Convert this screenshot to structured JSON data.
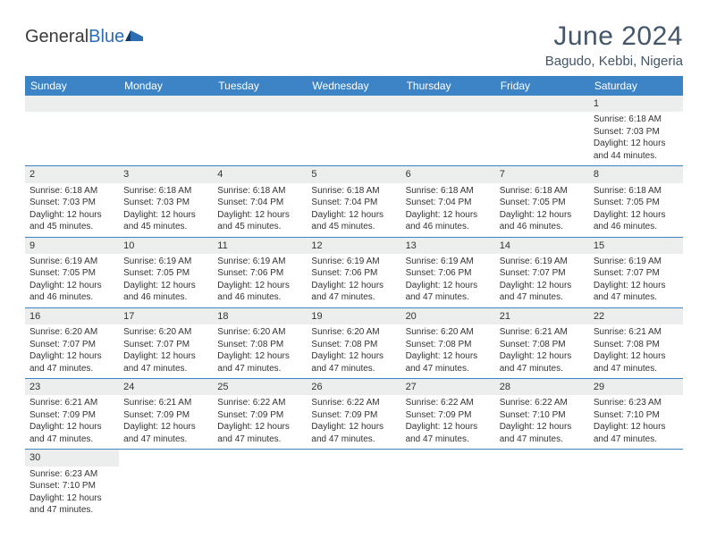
{
  "brand": {
    "part1": "General",
    "part2": "Blue"
  },
  "title": "June 2024",
  "location": "Bagudo, Kebbi, Nigeria",
  "colors": {
    "header_bg": "#3d84c6",
    "header_text": "#ffffff",
    "daynum_bg": "#eceded",
    "cell_border": "#3d84c6",
    "title_color": "#44566a",
    "brand_blue": "#2a6db5",
    "text": "#333333",
    "page_bg": "#ffffff"
  },
  "fonts": {
    "title_size_pt": 22,
    "location_size_pt": 11,
    "dayheader_size_pt": 9,
    "daynum_size_pt": 8,
    "body_size_pt": 7.5
  },
  "day_headers": [
    "Sunday",
    "Monday",
    "Tuesday",
    "Wednesday",
    "Thursday",
    "Friday",
    "Saturday"
  ],
  "weeks": [
    [
      null,
      null,
      null,
      null,
      null,
      null,
      {
        "n": "1",
        "sr": "Sunrise: 6:18 AM",
        "ss": "Sunset: 7:03 PM",
        "dl": "Daylight: 12 hours and 44 minutes."
      }
    ],
    [
      {
        "n": "2",
        "sr": "Sunrise: 6:18 AM",
        "ss": "Sunset: 7:03 PM",
        "dl": "Daylight: 12 hours and 45 minutes."
      },
      {
        "n": "3",
        "sr": "Sunrise: 6:18 AM",
        "ss": "Sunset: 7:03 PM",
        "dl": "Daylight: 12 hours and 45 minutes."
      },
      {
        "n": "4",
        "sr": "Sunrise: 6:18 AM",
        "ss": "Sunset: 7:04 PM",
        "dl": "Daylight: 12 hours and 45 minutes."
      },
      {
        "n": "5",
        "sr": "Sunrise: 6:18 AM",
        "ss": "Sunset: 7:04 PM",
        "dl": "Daylight: 12 hours and 45 minutes."
      },
      {
        "n": "6",
        "sr": "Sunrise: 6:18 AM",
        "ss": "Sunset: 7:04 PM",
        "dl": "Daylight: 12 hours and 46 minutes."
      },
      {
        "n": "7",
        "sr": "Sunrise: 6:18 AM",
        "ss": "Sunset: 7:05 PM",
        "dl": "Daylight: 12 hours and 46 minutes."
      },
      {
        "n": "8",
        "sr": "Sunrise: 6:18 AM",
        "ss": "Sunset: 7:05 PM",
        "dl": "Daylight: 12 hours and 46 minutes."
      }
    ],
    [
      {
        "n": "9",
        "sr": "Sunrise: 6:19 AM",
        "ss": "Sunset: 7:05 PM",
        "dl": "Daylight: 12 hours and 46 minutes."
      },
      {
        "n": "10",
        "sr": "Sunrise: 6:19 AM",
        "ss": "Sunset: 7:05 PM",
        "dl": "Daylight: 12 hours and 46 minutes."
      },
      {
        "n": "11",
        "sr": "Sunrise: 6:19 AM",
        "ss": "Sunset: 7:06 PM",
        "dl": "Daylight: 12 hours and 46 minutes."
      },
      {
        "n": "12",
        "sr": "Sunrise: 6:19 AM",
        "ss": "Sunset: 7:06 PM",
        "dl": "Daylight: 12 hours and 47 minutes."
      },
      {
        "n": "13",
        "sr": "Sunrise: 6:19 AM",
        "ss": "Sunset: 7:06 PM",
        "dl": "Daylight: 12 hours and 47 minutes."
      },
      {
        "n": "14",
        "sr": "Sunrise: 6:19 AM",
        "ss": "Sunset: 7:07 PM",
        "dl": "Daylight: 12 hours and 47 minutes."
      },
      {
        "n": "15",
        "sr": "Sunrise: 6:19 AM",
        "ss": "Sunset: 7:07 PM",
        "dl": "Daylight: 12 hours and 47 minutes."
      }
    ],
    [
      {
        "n": "16",
        "sr": "Sunrise: 6:20 AM",
        "ss": "Sunset: 7:07 PM",
        "dl": "Daylight: 12 hours and 47 minutes."
      },
      {
        "n": "17",
        "sr": "Sunrise: 6:20 AM",
        "ss": "Sunset: 7:07 PM",
        "dl": "Daylight: 12 hours and 47 minutes."
      },
      {
        "n": "18",
        "sr": "Sunrise: 6:20 AM",
        "ss": "Sunset: 7:08 PM",
        "dl": "Daylight: 12 hours and 47 minutes."
      },
      {
        "n": "19",
        "sr": "Sunrise: 6:20 AM",
        "ss": "Sunset: 7:08 PM",
        "dl": "Daylight: 12 hours and 47 minutes."
      },
      {
        "n": "20",
        "sr": "Sunrise: 6:20 AM",
        "ss": "Sunset: 7:08 PM",
        "dl": "Daylight: 12 hours and 47 minutes."
      },
      {
        "n": "21",
        "sr": "Sunrise: 6:21 AM",
        "ss": "Sunset: 7:08 PM",
        "dl": "Daylight: 12 hours and 47 minutes."
      },
      {
        "n": "22",
        "sr": "Sunrise: 6:21 AM",
        "ss": "Sunset: 7:08 PM",
        "dl": "Daylight: 12 hours and 47 minutes."
      }
    ],
    [
      {
        "n": "23",
        "sr": "Sunrise: 6:21 AM",
        "ss": "Sunset: 7:09 PM",
        "dl": "Daylight: 12 hours and 47 minutes."
      },
      {
        "n": "24",
        "sr": "Sunrise: 6:21 AM",
        "ss": "Sunset: 7:09 PM",
        "dl": "Daylight: 12 hours and 47 minutes."
      },
      {
        "n": "25",
        "sr": "Sunrise: 6:22 AM",
        "ss": "Sunset: 7:09 PM",
        "dl": "Daylight: 12 hours and 47 minutes."
      },
      {
        "n": "26",
        "sr": "Sunrise: 6:22 AM",
        "ss": "Sunset: 7:09 PM",
        "dl": "Daylight: 12 hours and 47 minutes."
      },
      {
        "n": "27",
        "sr": "Sunrise: 6:22 AM",
        "ss": "Sunset: 7:09 PM",
        "dl": "Daylight: 12 hours and 47 minutes."
      },
      {
        "n": "28",
        "sr": "Sunrise: 6:22 AM",
        "ss": "Sunset: 7:10 PM",
        "dl": "Daylight: 12 hours and 47 minutes."
      },
      {
        "n": "29",
        "sr": "Sunrise: 6:23 AM",
        "ss": "Sunset: 7:10 PM",
        "dl": "Daylight: 12 hours and 47 minutes."
      }
    ],
    [
      {
        "n": "30",
        "sr": "Sunrise: 6:23 AM",
        "ss": "Sunset: 7:10 PM",
        "dl": "Daylight: 12 hours and 47 minutes."
      },
      null,
      null,
      null,
      null,
      null,
      null
    ]
  ]
}
